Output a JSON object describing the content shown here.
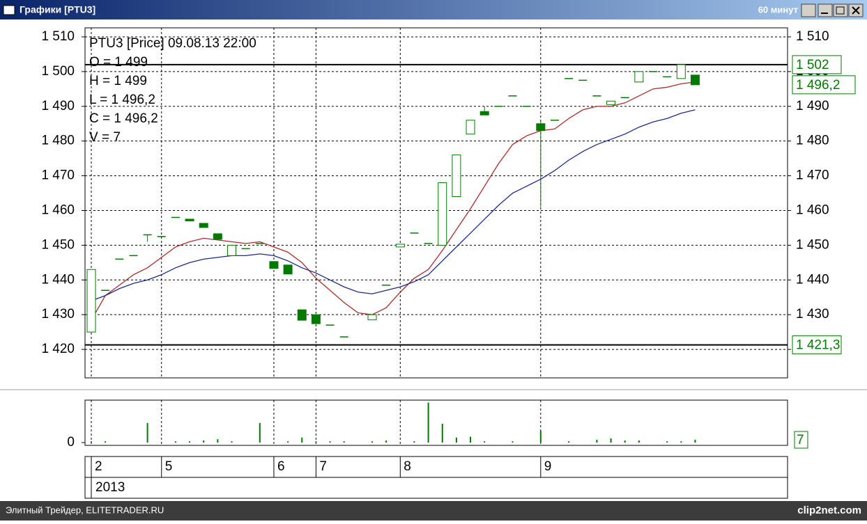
{
  "window": {
    "title": "Графики [PTU3]",
    "timeframe": "60 минут"
  },
  "footer": {
    "left": "Элитный Трейдер, ELITETRADER.RU",
    "right": "clip2net.com"
  },
  "chart_data": {
    "type": "candlestick",
    "info": [
      "PTU3 [Price] 09.08.13 22:00",
      "O = 1 499",
      "H = 1 499",
      "L = 1 496,2",
      "C = 1 496,2",
      "V = 7"
    ],
    "year": "2013",
    "categories": [
      "2",
      null,
      null,
      null,
      null,
      "5",
      null,
      null,
      null,
      null,
      null,
      null,
      null,
      "6",
      null,
      null,
      "7",
      null,
      null,
      null,
      null,
      null,
      "8",
      null,
      null,
      null,
      null,
      null,
      null,
      null,
      null,
      null,
      "9",
      null,
      null,
      null,
      null,
      null,
      null,
      null,
      null,
      null,
      null,
      null
    ],
    "open": [
      1425,
      1437,
      1446,
      1447,
      1453,
      1452.5,
      1458,
      1457.5,
      1456.3,
      1453.3,
      1447,
      1449,
      1450.5,
      1445.3,
      1444.3,
      1431.4,
      1430,
      1427,
      1423.6,
      null,
      1428.5,
      1438.5,
      1449.5,
      1453.5,
      1450.5,
      1450,
      1464,
      1482,
      1488.5,
      1490,
      1493,
      1490,
      1485,
      1486,
      1498,
      1497.5,
      1493,
      1490.5,
      1492.5,
      1497,
      1500,
      1498.5,
      1498,
      1499
    ],
    "high": [
      1443,
      1437,
      1446,
      1447,
      1453,
      1452.5,
      1458,
      1457.5,
      1456.3,
      1453.3,
      1450,
      1449,
      1450.5,
      1445.3,
      1444.3,
      1431.4,
      1430,
      1427,
      1423.6,
      null,
      1430,
      1438.5,
      1450.3,
      1453.5,
      1450.5,
      1468,
      1476,
      1486,
      1490,
      1490,
      1493,
      1490,
      1486,
      1486,
      1498,
      1497.5,
      1493,
      1491.5,
      1492.5,
      1500,
      1500,
      1498.5,
      1502,
      1499
    ],
    "low": [
      1425,
      1437,
      1446,
      1447,
      1451,
      1452.5,
      1458,
      1457,
      1455.1,
      1451.7,
      1447,
      1449,
      1450.5,
      1443.3,
      1441.7,
      1428.4,
      1427.4,
      1427,
      1423.6,
      null,
      1428.5,
      1438.5,
      1449.5,
      1453.5,
      1450.5,
      1450,
      1464,
      1482,
      1487.5,
      1490,
      1493,
      1490,
      1461,
      1486,
      1498,
      1497.5,
      1493,
      1490.5,
      1492.5,
      1497,
      1500,
      1498.5,
      1498,
      1496.2
    ],
    "close": [
      1443,
      1437,
      1446,
      1447,
      1453,
      1452.5,
      1458,
      1457,
      1455.1,
      1451.7,
      1450,
      1449,
      1450.5,
      1443.3,
      1441.7,
      1428.4,
      1427.4,
      1427,
      1423.6,
      null,
      1430,
      1438.5,
      1450.3,
      1453.5,
      1450.5,
      1468,
      1476,
      1486,
      1487.5,
      1490,
      1493,
      1490,
      1483,
      1486,
      1498,
      1497.5,
      1493,
      1491.5,
      1492.5,
      1500,
      1500,
      1498.5,
      1502,
      1496.2
    ],
    "color": "#007a00",
    "overlays": [
      {
        "color": "#b02a2a",
        "values": [
          1428.4,
          1435.5,
          1438.5,
          1441.5,
          1443.5,
          1446.5,
          1449.5,
          1451,
          1452,
          1451.5,
          1451,
          1450.5,
          1451,
          1449.5,
          1448,
          1445,
          1440.5,
          1437,
          1433.5,
          1430.5,
          1430,
          1432,
          1436.5,
          1440.5,
          1443,
          1448.5,
          1454.5,
          1460.5,
          1467,
          1473.5,
          1479,
          1481.5,
          1483,
          1483.5,
          1486.5,
          1489,
          1490,
          1490,
          1491,
          1493,
          1495,
          1495.5,
          1496.5,
          1497
        ]
      },
      {
        "color": "#1c2a8c",
        "values": [
          1434,
          1435.5,
          1437.5,
          1439,
          1440,
          1441.5,
          1443.5,
          1445,
          1446,
          1446.5,
          1447,
          1447,
          1447.5,
          1447,
          1445.5,
          1443.5,
          1442,
          1440,
          1438,
          1436.5,
          1436,
          1437,
          1438,
          1439.5,
          1441.5,
          1445.5,
          1449.5,
          1453.5,
          1457.5,
          1461.5,
          1465,
          1467,
          1469,
          1471.5,
          1474.5,
          1477,
          1479,
          1480.5,
          1482,
          1484,
          1485.5,
          1486.5,
          1488,
          1489
        ]
      }
    ],
    "levels": [
      {
        "value": 1502,
        "label": "1 502"
      },
      {
        "value": 1421.3,
        "label": "1 421,3"
      }
    ],
    "last_price": {
      "value": 1496.2,
      "label": "1 496,2"
    },
    "ylim": [
      1411.8,
      1512.6
    ],
    "yticks": [
      {
        "value": 1420,
        "label": "1 420"
      },
      {
        "value": 1430,
        "label": "1 430"
      },
      {
        "value": 1440,
        "label": "1 440"
      },
      {
        "value": 1450,
        "label": "1 450"
      },
      {
        "value": 1460,
        "label": "1 460"
      },
      {
        "value": 1470,
        "label": "1 470"
      },
      {
        "value": 1480,
        "label": "1 480"
      },
      {
        "value": 1490,
        "label": "1 490"
      },
      {
        "value": 1500,
        "label": "1 500"
      },
      {
        "value": 1510,
        "label": "1 510"
      }
    ],
    "grid": true,
    "volume": {
      "values": [
        3,
        3,
        0,
        0,
        47,
        0,
        3,
        3,
        5,
        8,
        3,
        0,
        47,
        0,
        3,
        12,
        3,
        3,
        3,
        0,
        3,
        5,
        1,
        3,
        96,
        45,
        12,
        14,
        3,
        0,
        3,
        0,
        28,
        0,
        3,
        0,
        7,
        10,
        5,
        5,
        0,
        3,
        3,
        7
      ],
      "last_label": "7",
      "ylim": [
        0,
        100
      ],
      "yticks": [
        0
      ],
      "color": "#007a00"
    }
  }
}
